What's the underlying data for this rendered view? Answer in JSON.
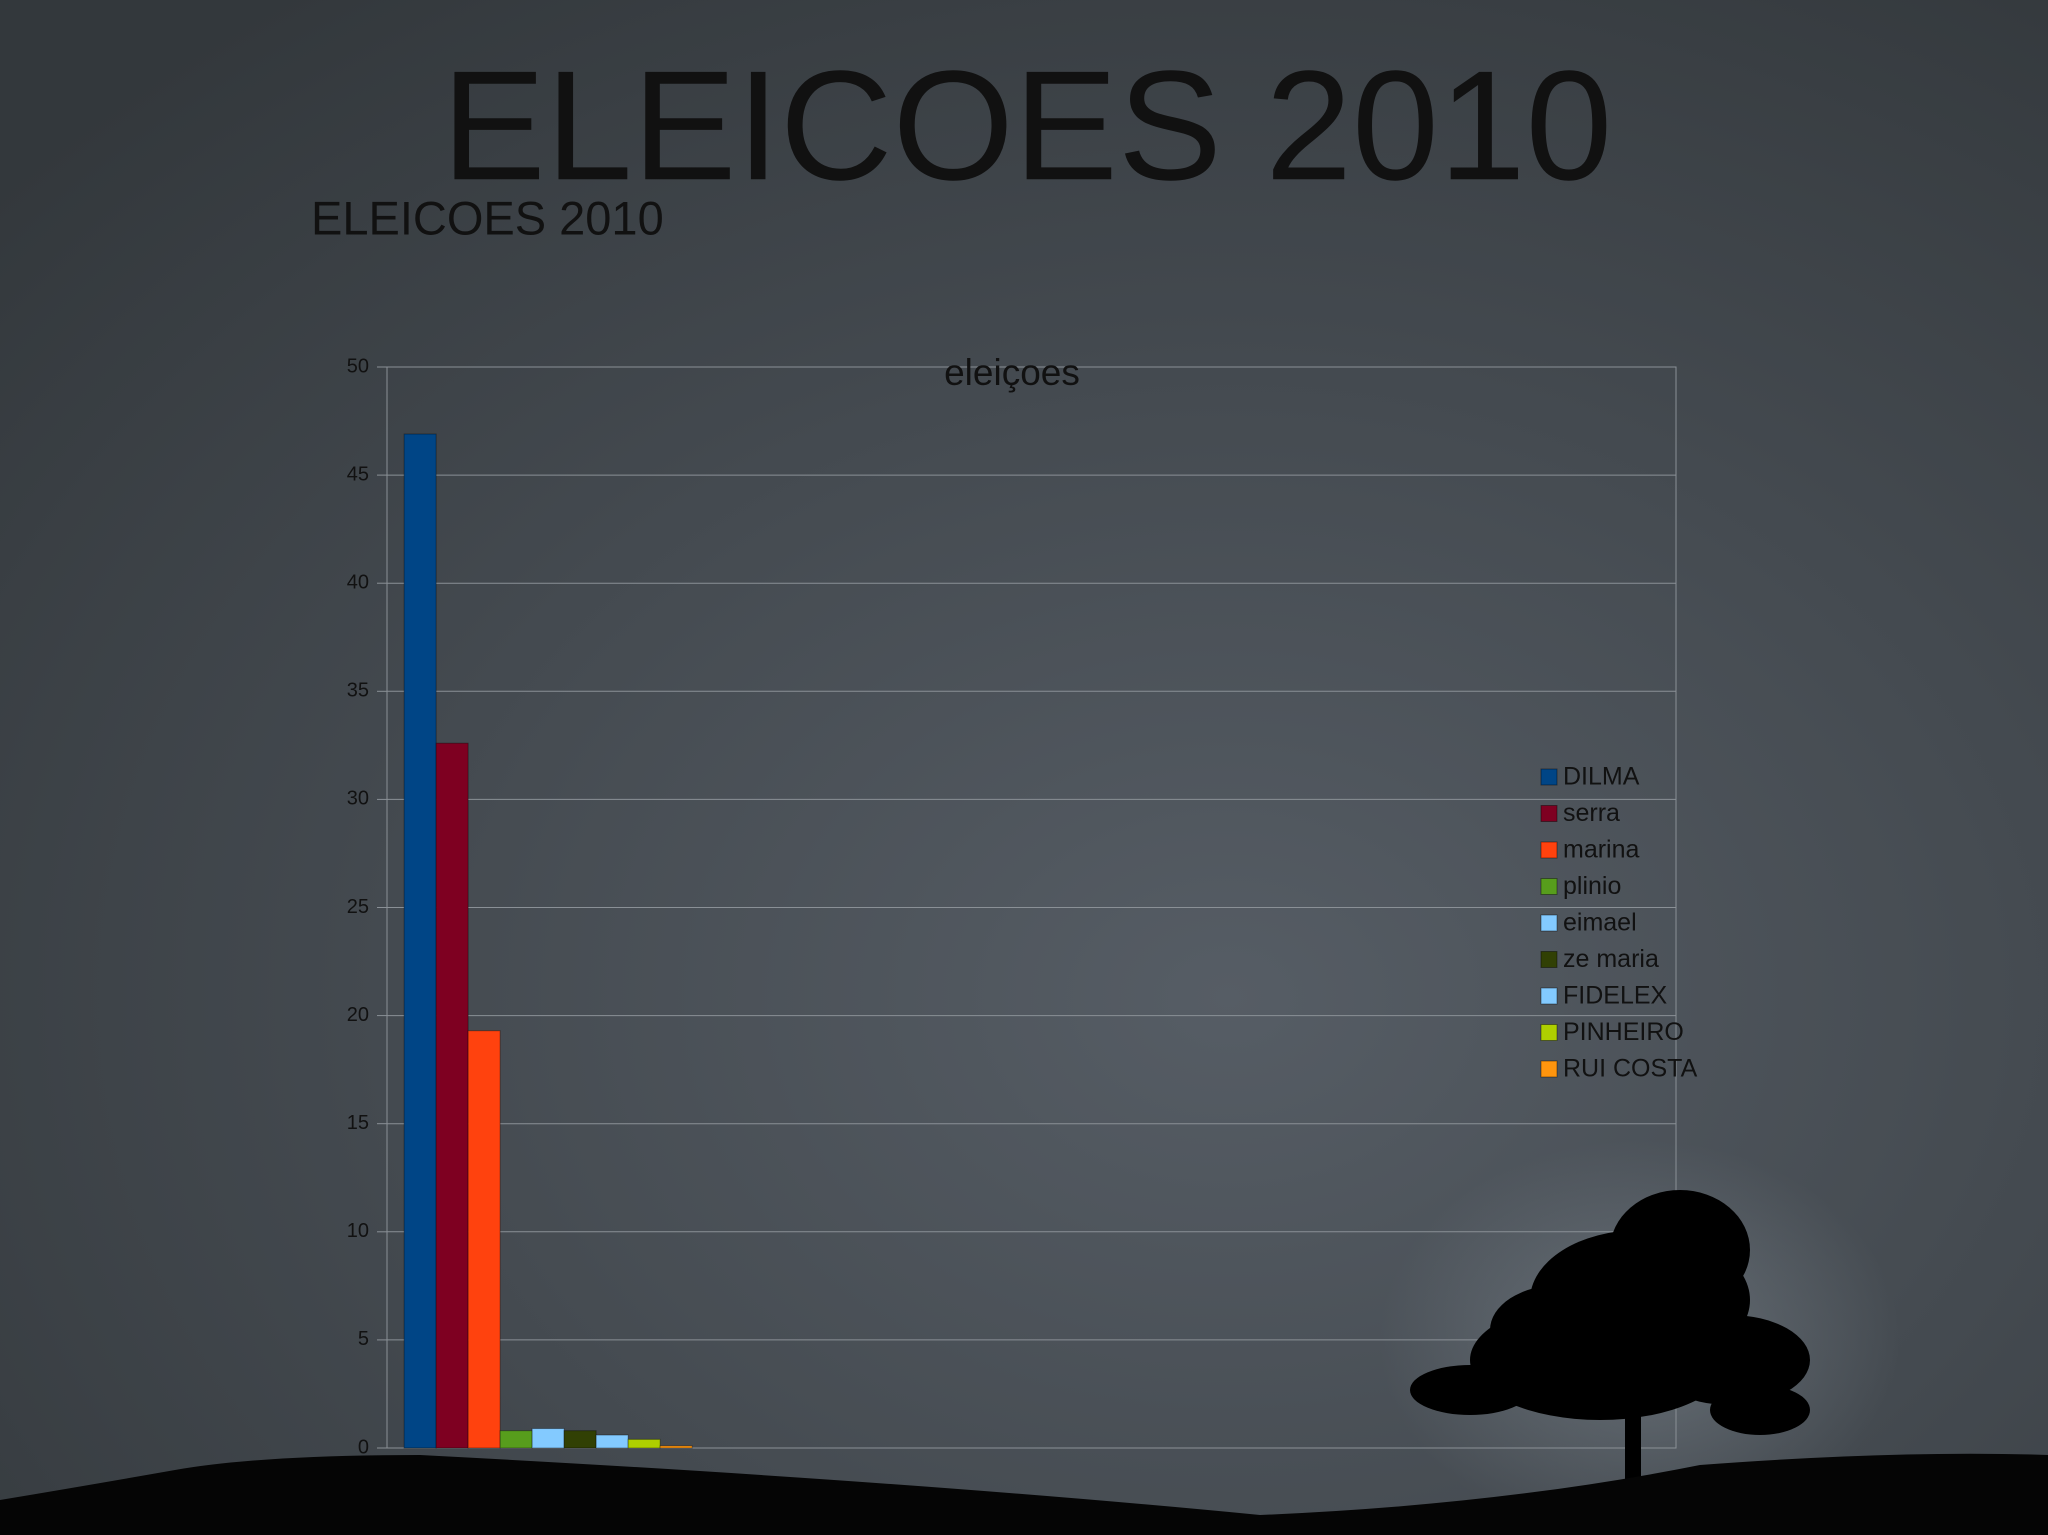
{
  "chart_data": {
    "type": "bar",
    "slide_title": "ELEICOES  2010",
    "subtitle": "ELEICOES 2010",
    "title": "eleiçoes",
    "categories": [
      null,
      null,
      null,
      null
    ],
    "series": [
      {
        "name": "DILMA",
        "color": "#004586",
        "values": [
          46.9,
          null,
          null,
          null
        ]
      },
      {
        "name": "serra",
        "color": "#7e0021",
        "values": [
          32.6,
          null,
          null,
          null
        ]
      },
      {
        "name": "marina",
        "color": "#ff420e",
        "values": [
          19.3,
          null,
          null,
          null
        ]
      },
      {
        "name": "plinio",
        "color": "#579d1c",
        "values": [
          0.8,
          null,
          null,
          null
        ]
      },
      {
        "name": "eimael",
        "color": "#83caff",
        "values": [
          0.9,
          null,
          null,
          null
        ]
      },
      {
        "name": "ze maria",
        "color": "#314004",
        "values": [
          0.8,
          null,
          null,
          null
        ]
      },
      {
        "name": "FIDELEX",
        "color": "#83caff",
        "values": [
          0.6,
          null,
          null,
          null
        ]
      },
      {
        "name": "PINHEIRO",
        "color": "#aecf00",
        "values": [
          0.4,
          null,
          null,
          null
        ]
      },
      {
        "name": "RUI COSTA",
        "color": "#ff950e",
        "values": [
          0.1,
          null,
          null,
          null
        ]
      }
    ],
    "ylim": [
      0,
      50
    ],
    "yticks": [
      0,
      5,
      10,
      15,
      20,
      25,
      30,
      35,
      40,
      45,
      50
    ],
    "grid": true,
    "legend": "right"
  }
}
